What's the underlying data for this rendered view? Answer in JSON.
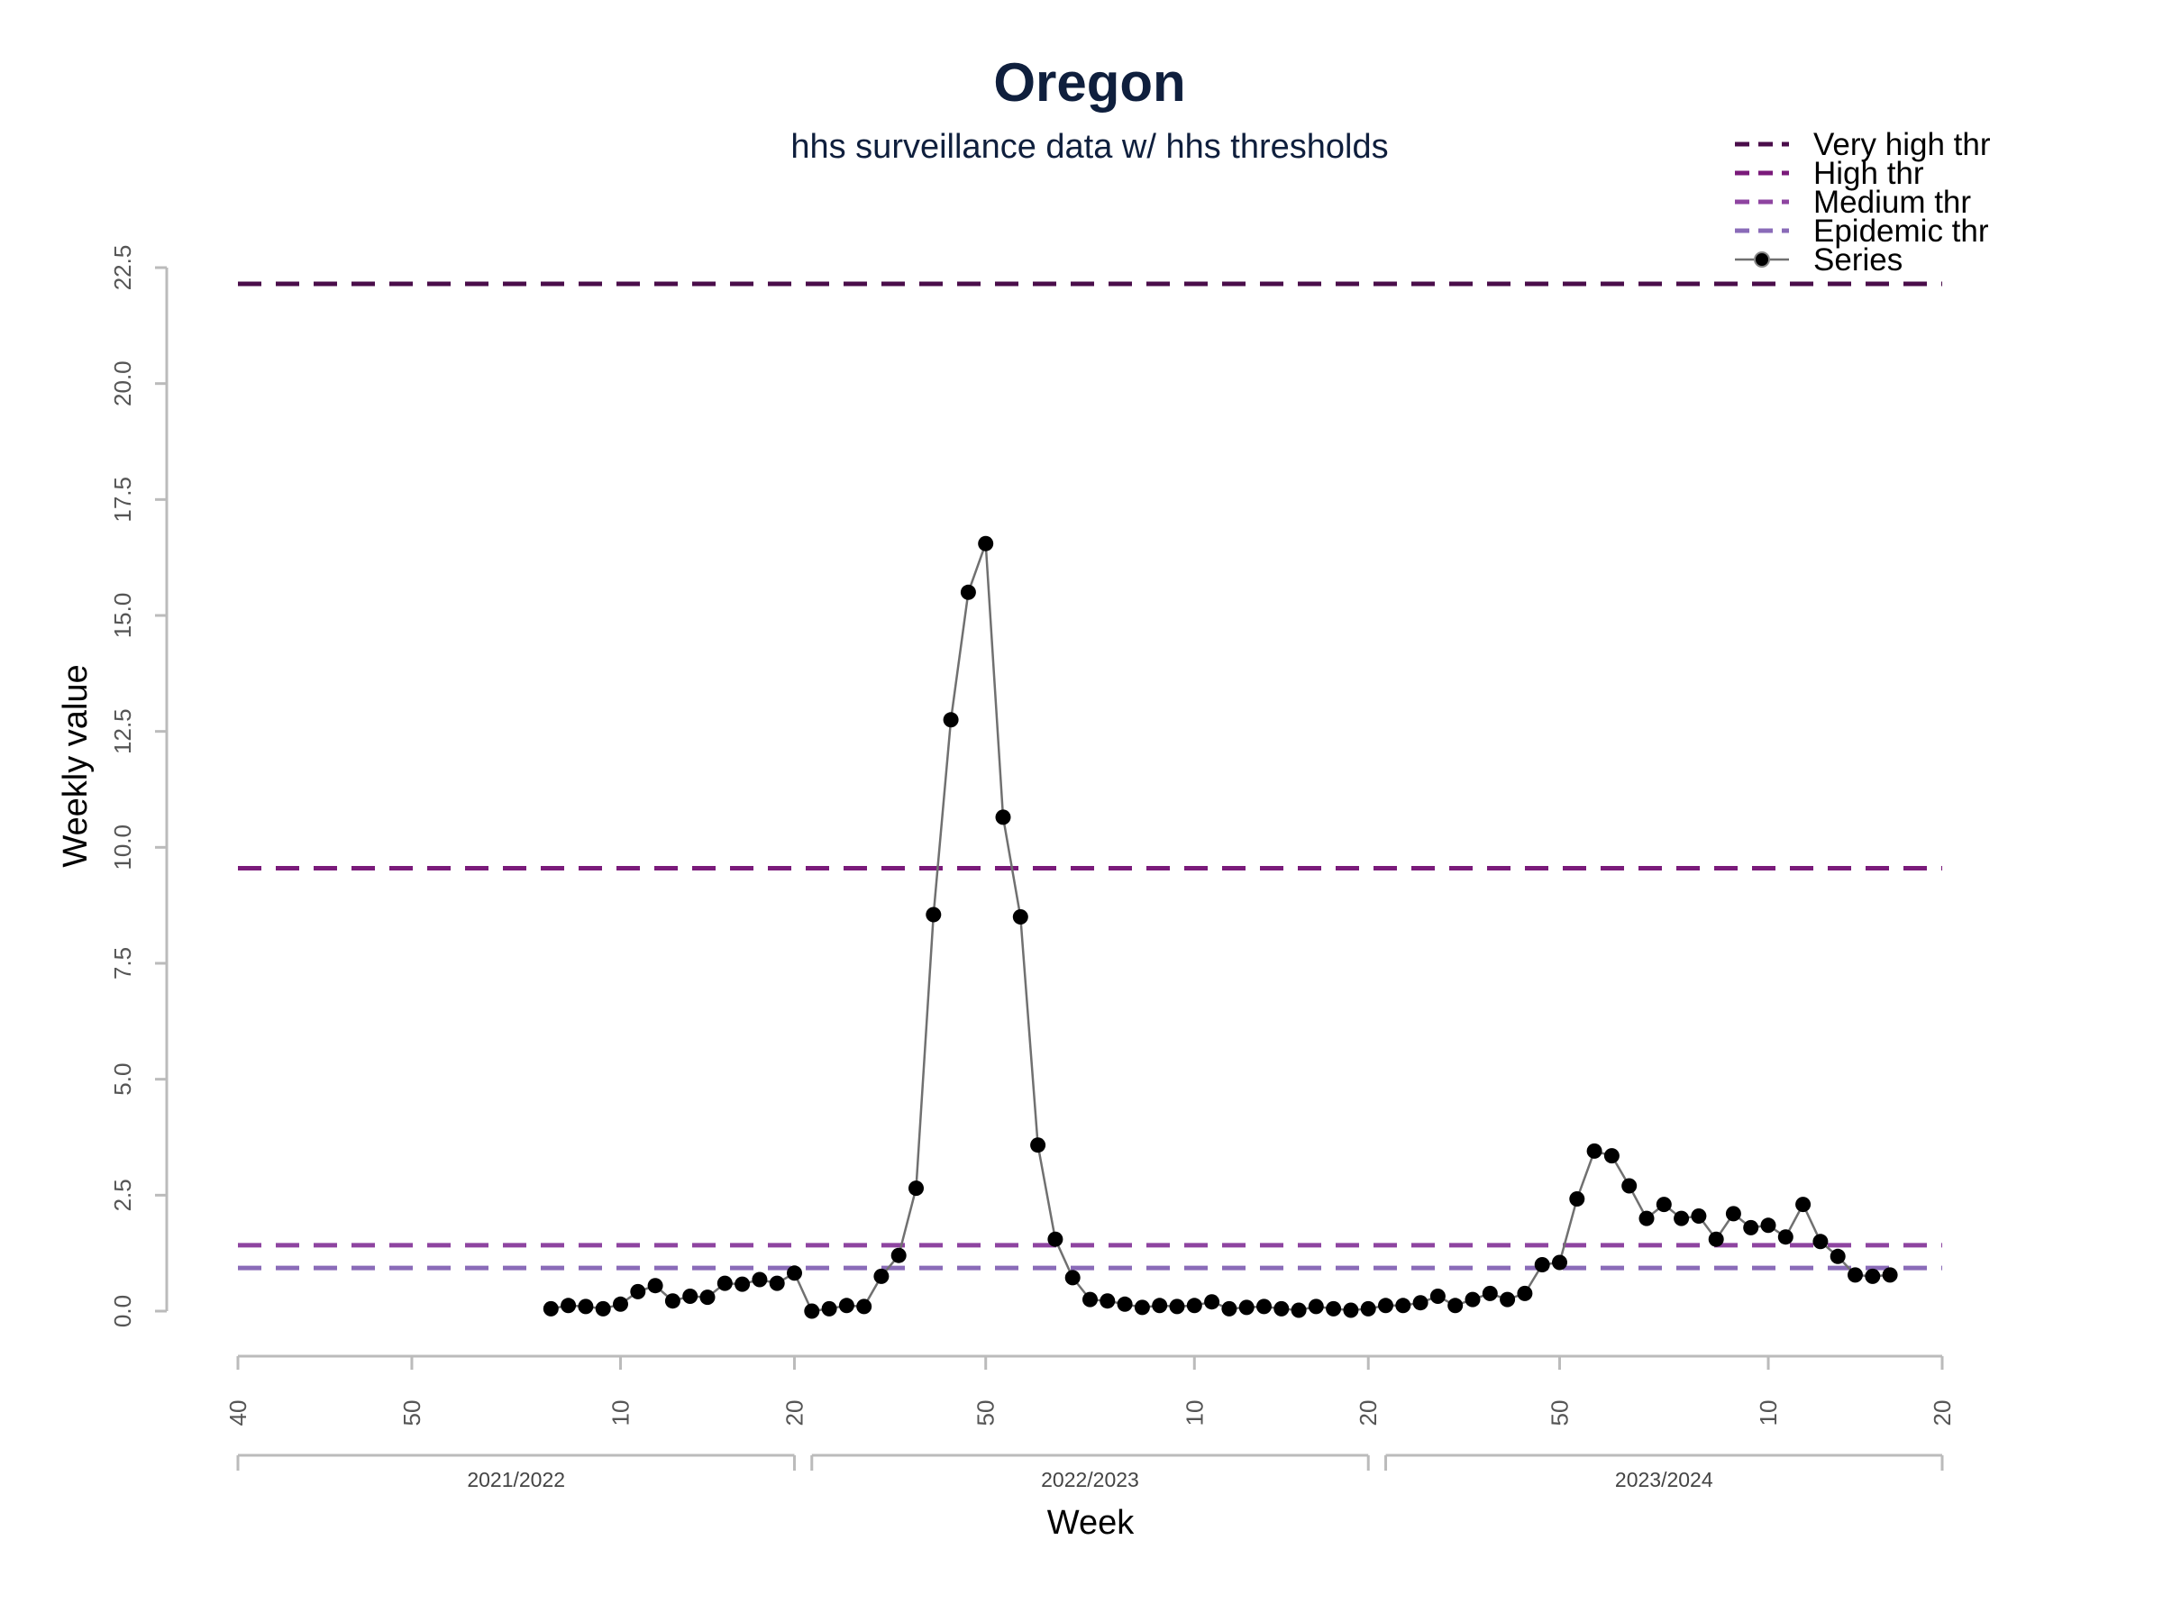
{
  "chart_data": {
    "type": "line",
    "title": "Oregon",
    "subtitle": "hhs surveillance data w/ hhs thresholds",
    "xlabel": "Week",
    "ylabel": "Weekly value",
    "ylim": [
      0,
      22.5
    ],
    "y_ticks": [
      "0.0",
      "2.5",
      "5.0",
      "7.5",
      "10.0",
      "12.5",
      "15.0",
      "17.5",
      "20.0",
      "22.5"
    ],
    "x_ticks": [
      {
        "index": 0,
        "label": "40"
      },
      {
        "index": 10,
        "label": "50"
      },
      {
        "index": 22,
        "label": "10"
      },
      {
        "index": 32,
        "label": "20"
      },
      {
        "index": 43,
        "label": "50"
      },
      {
        "index": 55,
        "label": "10"
      },
      {
        "index": 65,
        "label": "20"
      },
      {
        "index": 76,
        "label": "50"
      },
      {
        "index": 88,
        "label": "10"
      },
      {
        "index": 98,
        "label": "20"
      }
    ],
    "seasons": [
      {
        "label": "2021/2022",
        "start": 0,
        "end": 32
      },
      {
        "label": "2022/2023",
        "start": 33,
        "end": 65
      },
      {
        "label": "2023/2024",
        "start": 66,
        "end": 98
      }
    ],
    "thresholds": [
      {
        "name": "Very high thr",
        "value": 22.15,
        "color": "#4a0d4a"
      },
      {
        "name": "High thr",
        "value": 9.55,
        "color": "#7a1a7a"
      },
      {
        "name": "Medium thr",
        "value": 1.42,
        "color": "#8e44a0"
      },
      {
        "name": "Epidemic thr",
        "value": 0.93,
        "color": "#8a6bb8"
      }
    ],
    "series": [
      {
        "name": "Series",
        "color": "#707070",
        "marker_color": "#000000",
        "x": [
          18,
          19,
          20,
          21,
          22,
          23,
          24,
          25,
          26,
          27,
          28,
          29,
          30,
          31,
          32,
          33,
          34,
          35,
          36,
          37,
          38,
          39,
          40,
          41,
          42,
          43,
          44,
          45,
          46,
          47,
          48,
          49,
          50,
          51,
          52,
          53,
          54,
          55,
          56,
          57,
          58,
          59,
          60,
          61,
          62,
          63,
          64,
          65,
          66,
          67,
          68,
          69,
          70,
          71,
          72,
          73,
          74,
          75,
          76,
          77,
          78,
          79,
          80,
          81,
          82,
          83,
          84,
          85,
          86,
          87,
          88,
          89,
          90,
          91,
          92,
          93,
          94,
          95
        ],
        "values": [
          0.05,
          0.12,
          0.1,
          0.05,
          0.15,
          0.42,
          0.55,
          0.22,
          0.32,
          0.3,
          0.6,
          0.58,
          0.68,
          0.6,
          0.82,
          0.0,
          0.05,
          0.12,
          0.1,
          0.75,
          1.2,
          2.65,
          8.55,
          12.75,
          15.5,
          16.55,
          10.65,
          8.5,
          3.58,
          1.55,
          0.72,
          0.25,
          0.22,
          0.15,
          0.08,
          0.12,
          0.1,
          0.12,
          0.2,
          0.05,
          0.08,
          0.1,
          0.05,
          0.02,
          0.1,
          0.05,
          0.02,
          0.05,
          0.12,
          0.12,
          0.18,
          0.32,
          0.12,
          0.25,
          0.38,
          0.25,
          0.38,
          1.0,
          1.05,
          2.42,
          3.45,
          3.35,
          2.7,
          2.0,
          2.3,
          2.0,
          2.05,
          1.55,
          2.1,
          1.8,
          1.85,
          1.6,
          2.3,
          1.5,
          1.18,
          0.78,
          0.75,
          0.78
        ]
      }
    ],
    "legend": {
      "position": "top-right",
      "entries": [
        "Very high thr",
        "High thr",
        "Medium thr",
        "Epidemic thr",
        "Series"
      ]
    },
    "grid": false
  }
}
